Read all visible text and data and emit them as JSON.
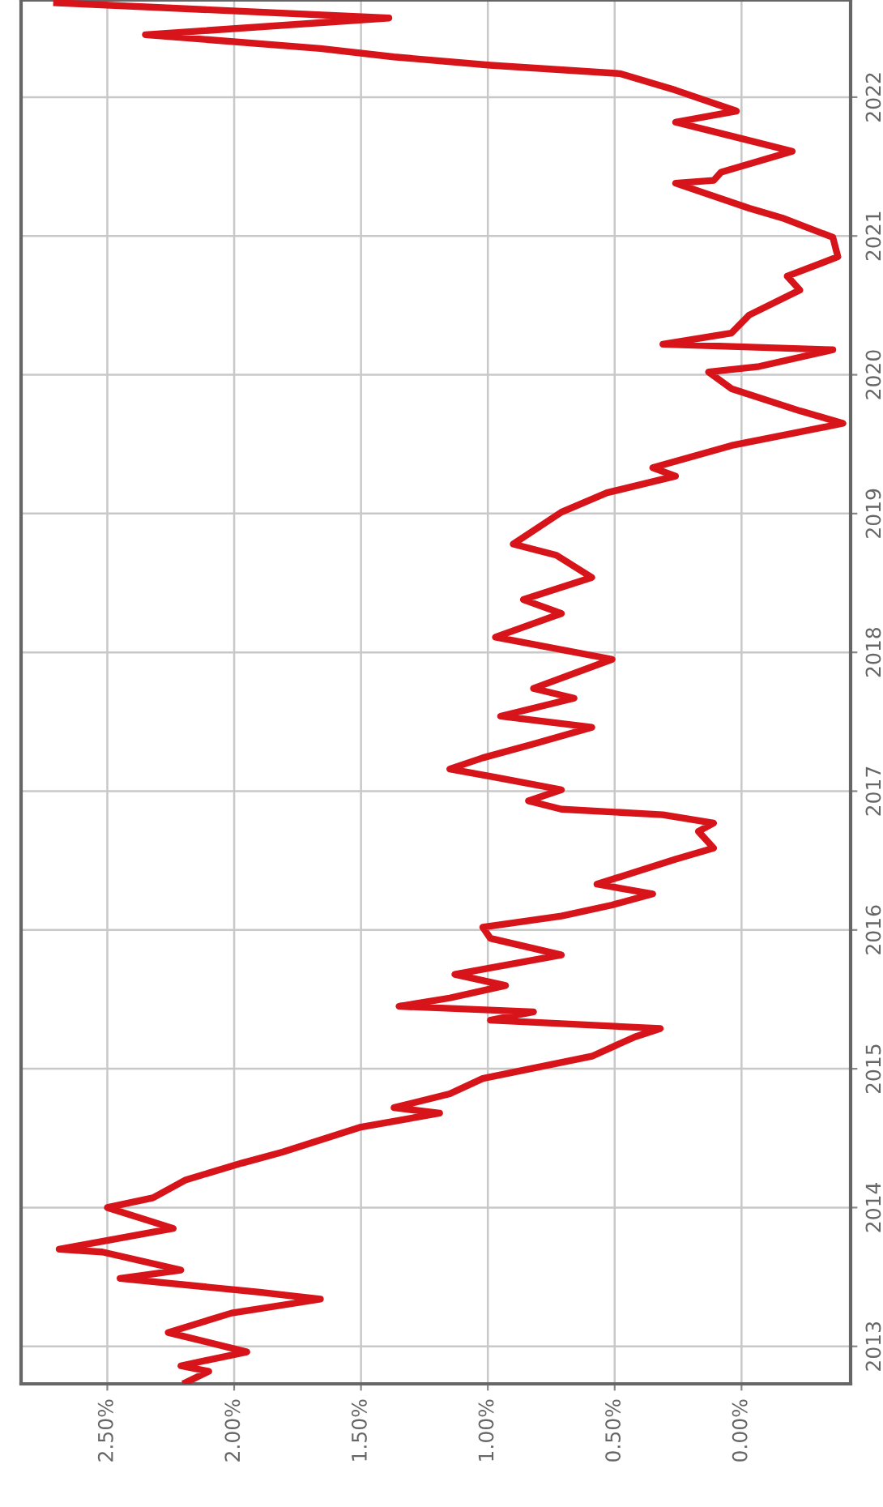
{
  "chart_data": {
    "type": "line",
    "grid": true,
    "marker": "none",
    "line_style": "solid",
    "xlim": [
      2.84,
      -0.43
    ],
    "xticks": [
      {
        "value": 2.5,
        "label": "2.50%"
      },
      {
        "value": 2,
        "label": "2.00%"
      },
      {
        "value": 1.5,
        "label": "1.50%"
      },
      {
        "value": 1,
        "label": "1.00%"
      },
      {
        "value": 0.5,
        "label": "0.50%"
      },
      {
        "value": 0,
        "label": "0.00%"
      }
    ],
    "ylim": [
      2012.73,
      2022.7
    ],
    "yticks": [
      2013,
      2014,
      2015,
      2016,
      2017,
      2018,
      2019,
      2020,
      2021,
      2022
    ],
    "x": [
      2.19,
      2.1,
      2.21,
      1.95,
      2.26,
      2.01,
      1.66,
      1.9,
      2.45,
      2.21,
      2.52,
      2.69,
      2.48,
      2.24,
      2.5,
      2.32,
      2.19,
      1.97,
      1.81,
      1.5,
      1.19,
      1.37,
      1.15,
      1.02,
      0.59,
      0.42,
      0.32,
      0.99,
      0.82,
      1.35,
      1.15,
      0.93,
      1.13,
      0.71,
      0.99,
      1.02,
      0.71,
      0.51,
      0.35,
      0.57,
      0.26,
      0.11,
      0.17,
      0.11,
      0.31,
      0.71,
      0.84,
      0.71,
      0.97,
      1.15,
      1.02,
      0.82,
      0.59,
      0.95,
      0.66,
      0.82,
      0.51,
      0.97,
      0.71,
      0.86,
      0.59,
      0.73,
      0.9,
      0.71,
      0.53,
      0.26,
      0.35,
      0.04,
      -0.4,
      -0.23,
      0.04,
      0.13,
      -0.07,
      -0.36,
      0.31,
      0.04,
      -0.03,
      -0.23,
      -0.18,
      -0.38,
      -0.36,
      -0.16,
      -0.03,
      0.26,
      0.11,
      0.08,
      -0.2,
      0.04,
      0.26,
      0.02,
      0.26,
      0.48,
      0.99,
      1.37,
      1.66,
      2.35,
      1.39,
      2.7
    ],
    "series": [
      {
        "color": "#d7141a",
        "values": [
          2012.74,
          2012.82,
          2012.86,
          2012.96,
          2013.1,
          2013.24,
          2013.34,
          2013.39,
          2013.49,
          2013.55,
          2013.68,
          2013.7,
          2013.77,
          2013.85,
          2014.0,
          2014.07,
          2014.2,
          2014.32,
          2014.4,
          2014.58,
          2014.68,
          2014.72,
          2014.82,
          2014.93,
          2015.09,
          2015.23,
          2015.29,
          2015.35,
          2015.41,
          2015.45,
          2015.51,
          2015.6,
          2015.68,
          2015.82,
          2015.94,
          2016.02,
          2016.1,
          2016.18,
          2016.26,
          2016.33,
          2016.51,
          2016.59,
          2016.71,
          2016.77,
          2016.83,
          2016.87,
          2016.93,
          2017.01,
          2017.1,
          2017.16,
          2017.24,
          2017.34,
          2017.46,
          2017.54,
          2017.67,
          2017.74,
          2017.95,
          2018.11,
          2018.28,
          2018.38,
          2018.54,
          2018.7,
          2018.78,
          2019.01,
          2019.15,
          2019.27,
          2019.33,
          2019.49,
          2019.65,
          2019.74,
          2019.9,
          2020.02,
          2020.06,
          2020.18,
          2020.22,
          2020.3,
          2020.43,
          2020.61,
          2020.71,
          2020.85,
          2020.99,
          2021.13,
          2021.2,
          2021.38,
          2021.4,
          2021.46,
          2021.61,
          2021.72,
          2021.82,
          2021.9,
          2022.05,
          2022.17,
          2022.23,
          2022.29,
          2022.35,
          2022.45,
          2022.57,
          2022.68
        ]
      }
    ]
  }
}
